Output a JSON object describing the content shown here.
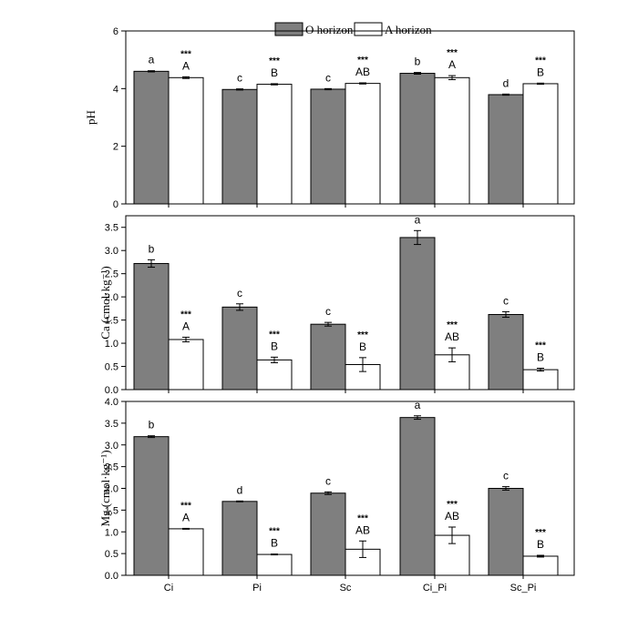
{
  "legend": {
    "o_label": "O horizon",
    "a_label": "A horizon",
    "o_color": "#7f7f7f",
    "a_color": "#ffffff"
  },
  "chart_data": [
    {
      "type": "bar",
      "ylabel": "pH",
      "ylim": [
        0,
        6
      ],
      "yticks": [
        "0",
        "2",
        "4",
        "6"
      ],
      "categories": [
        "Ci",
        "Pi",
        "Sc",
        "Ci_Pi",
        "Sc_Pi"
      ],
      "series": [
        {
          "name": "O horizon",
          "values": [
            4.6,
            3.97,
            3.98,
            4.53,
            3.79
          ],
          "errors": [
            0.02,
            0.02,
            0.02,
            0.03,
            0.02
          ]
        },
        {
          "name": "A horizon",
          "values": [
            4.38,
            4.15,
            4.18,
            4.38,
            4.17
          ],
          "errors": [
            0.03,
            0.02,
            0.02,
            0.07,
            0.02
          ]
        }
      ],
      "letters_o": [
        "a",
        "c",
        "c",
        "b",
        "d"
      ],
      "letters_a": [
        "A",
        "B",
        "AB",
        "A",
        "B"
      ],
      "stars": [
        "***",
        "***",
        "***",
        "***",
        "***"
      ]
    },
    {
      "type": "bar",
      "ylabel": "Ca (cmol·kg⁻¹)",
      "ylim": [
        0,
        3.75
      ],
      "yticks": [
        "0.0",
        "0.5",
        "1.0",
        "1.5",
        "2.0",
        "2.5",
        "3.0",
        "3.5"
      ],
      "categories": [
        "Ci",
        "Pi",
        "Sc",
        "Ci_Pi",
        "Sc_Pi"
      ],
      "series": [
        {
          "name": "O horizon",
          "values": [
            2.72,
            1.78,
            1.41,
            3.28,
            1.62
          ],
          "errors": [
            0.08,
            0.07,
            0.04,
            0.15,
            0.06
          ]
        },
        {
          "name": "A horizon",
          "values": [
            1.08,
            0.64,
            0.54,
            0.75,
            0.43
          ],
          "errors": [
            0.05,
            0.06,
            0.15,
            0.15,
            0.03
          ]
        }
      ],
      "letters_o": [
        "b",
        "c",
        "c",
        "a",
        "c"
      ],
      "letters_a": [
        "A",
        "B",
        "B",
        "AB",
        "B"
      ],
      "stars": [
        "***",
        "***",
        "***",
        "***",
        "***"
      ]
    },
    {
      "type": "bar",
      "ylabel": "Mg (cmol·kg⁻¹)",
      "ylim": [
        0,
        4
      ],
      "yticks": [
        "0.0",
        "0.5",
        "1.0",
        "1.5",
        "2.0",
        "2.5",
        "3.0",
        "3.5",
        "4.0"
      ],
      "categories": [
        "Ci",
        "Pi",
        "Sc",
        "Ci_Pi",
        "Sc_Pi"
      ],
      "series": [
        {
          "name": "O horizon",
          "values": [
            3.19,
            1.7,
            1.89,
            3.63,
            2.0
          ],
          "errors": [
            0.02,
            0.01,
            0.03,
            0.04,
            0.04
          ]
        },
        {
          "name": "A horizon",
          "values": [
            1.07,
            0.48,
            0.6,
            0.92,
            0.44
          ],
          "errors": [
            0.01,
            0.01,
            0.19,
            0.19,
            0.02
          ]
        }
      ],
      "letters_o": [
        "b",
        "d",
        "c",
        "a",
        "c"
      ],
      "letters_a": [
        "A",
        "B",
        "AB",
        "AB",
        "B"
      ],
      "stars": [
        "***",
        "***",
        "***",
        "***",
        "***"
      ]
    }
  ]
}
